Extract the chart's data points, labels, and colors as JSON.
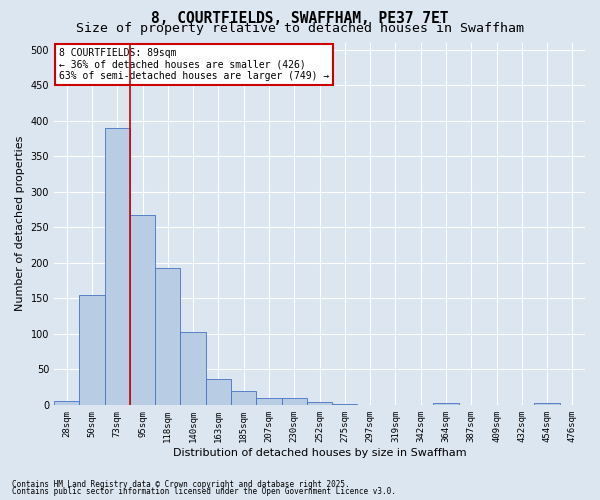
{
  "title_line1": "8, COURTFIELDS, SWAFFHAM, PE37 7ET",
  "title_line2": "Size of property relative to detached houses in Swaffham",
  "xlabel": "Distribution of detached houses by size in Swaffham",
  "ylabel": "Number of detached properties",
  "footnote1": "Contains HM Land Registry data © Crown copyright and database right 2025.",
  "footnote2": "Contains public sector information licensed under the Open Government Licence v3.0.",
  "annotation_title": "8 COURTFIELDS: 89sqm",
  "annotation_line2": "← 36% of detached houses are smaller (426)",
  "annotation_line3": "63% of semi-detached houses are larger (749) →",
  "bar_labels": [
    "28sqm",
    "50sqm",
    "73sqm",
    "95sqm",
    "118sqm",
    "140sqm",
    "163sqm",
    "185sqm",
    "207sqm",
    "230sqm",
    "252sqm",
    "275sqm",
    "297sqm",
    "319sqm",
    "342sqm",
    "364sqm",
    "387sqm",
    "409sqm",
    "432sqm",
    "454sqm",
    "476sqm"
  ],
  "bar_values": [
    5,
    155,
    390,
    267,
    192,
    102,
    36,
    20,
    10,
    9,
    4,
    1,
    0,
    0,
    0,
    3,
    0,
    0,
    0,
    3,
    0
  ],
  "bar_color": "#b8cce4",
  "bar_edge_color": "#4472c4",
  "vline_color": "#cc0000",
  "annotation_box_color": "#cc0000",
  "annotation_box_fill": "#ffffff",
  "background_color": "#dce6f1",
  "plot_background_color": "#dce6f1",
  "grid_color": "#ffffff",
  "ylim": [
    0,
    510
  ],
  "yticks": [
    0,
    50,
    100,
    150,
    200,
    250,
    300,
    350,
    400,
    450,
    500
  ],
  "title_fontsize": 10.5,
  "subtitle_fontsize": 9.5,
  "ylabel_fontsize": 8,
  "xlabel_fontsize": 8,
  "tick_fontsize": 6.5,
  "annot_fontsize": 7,
  "footnote_fontsize": 5.5
}
